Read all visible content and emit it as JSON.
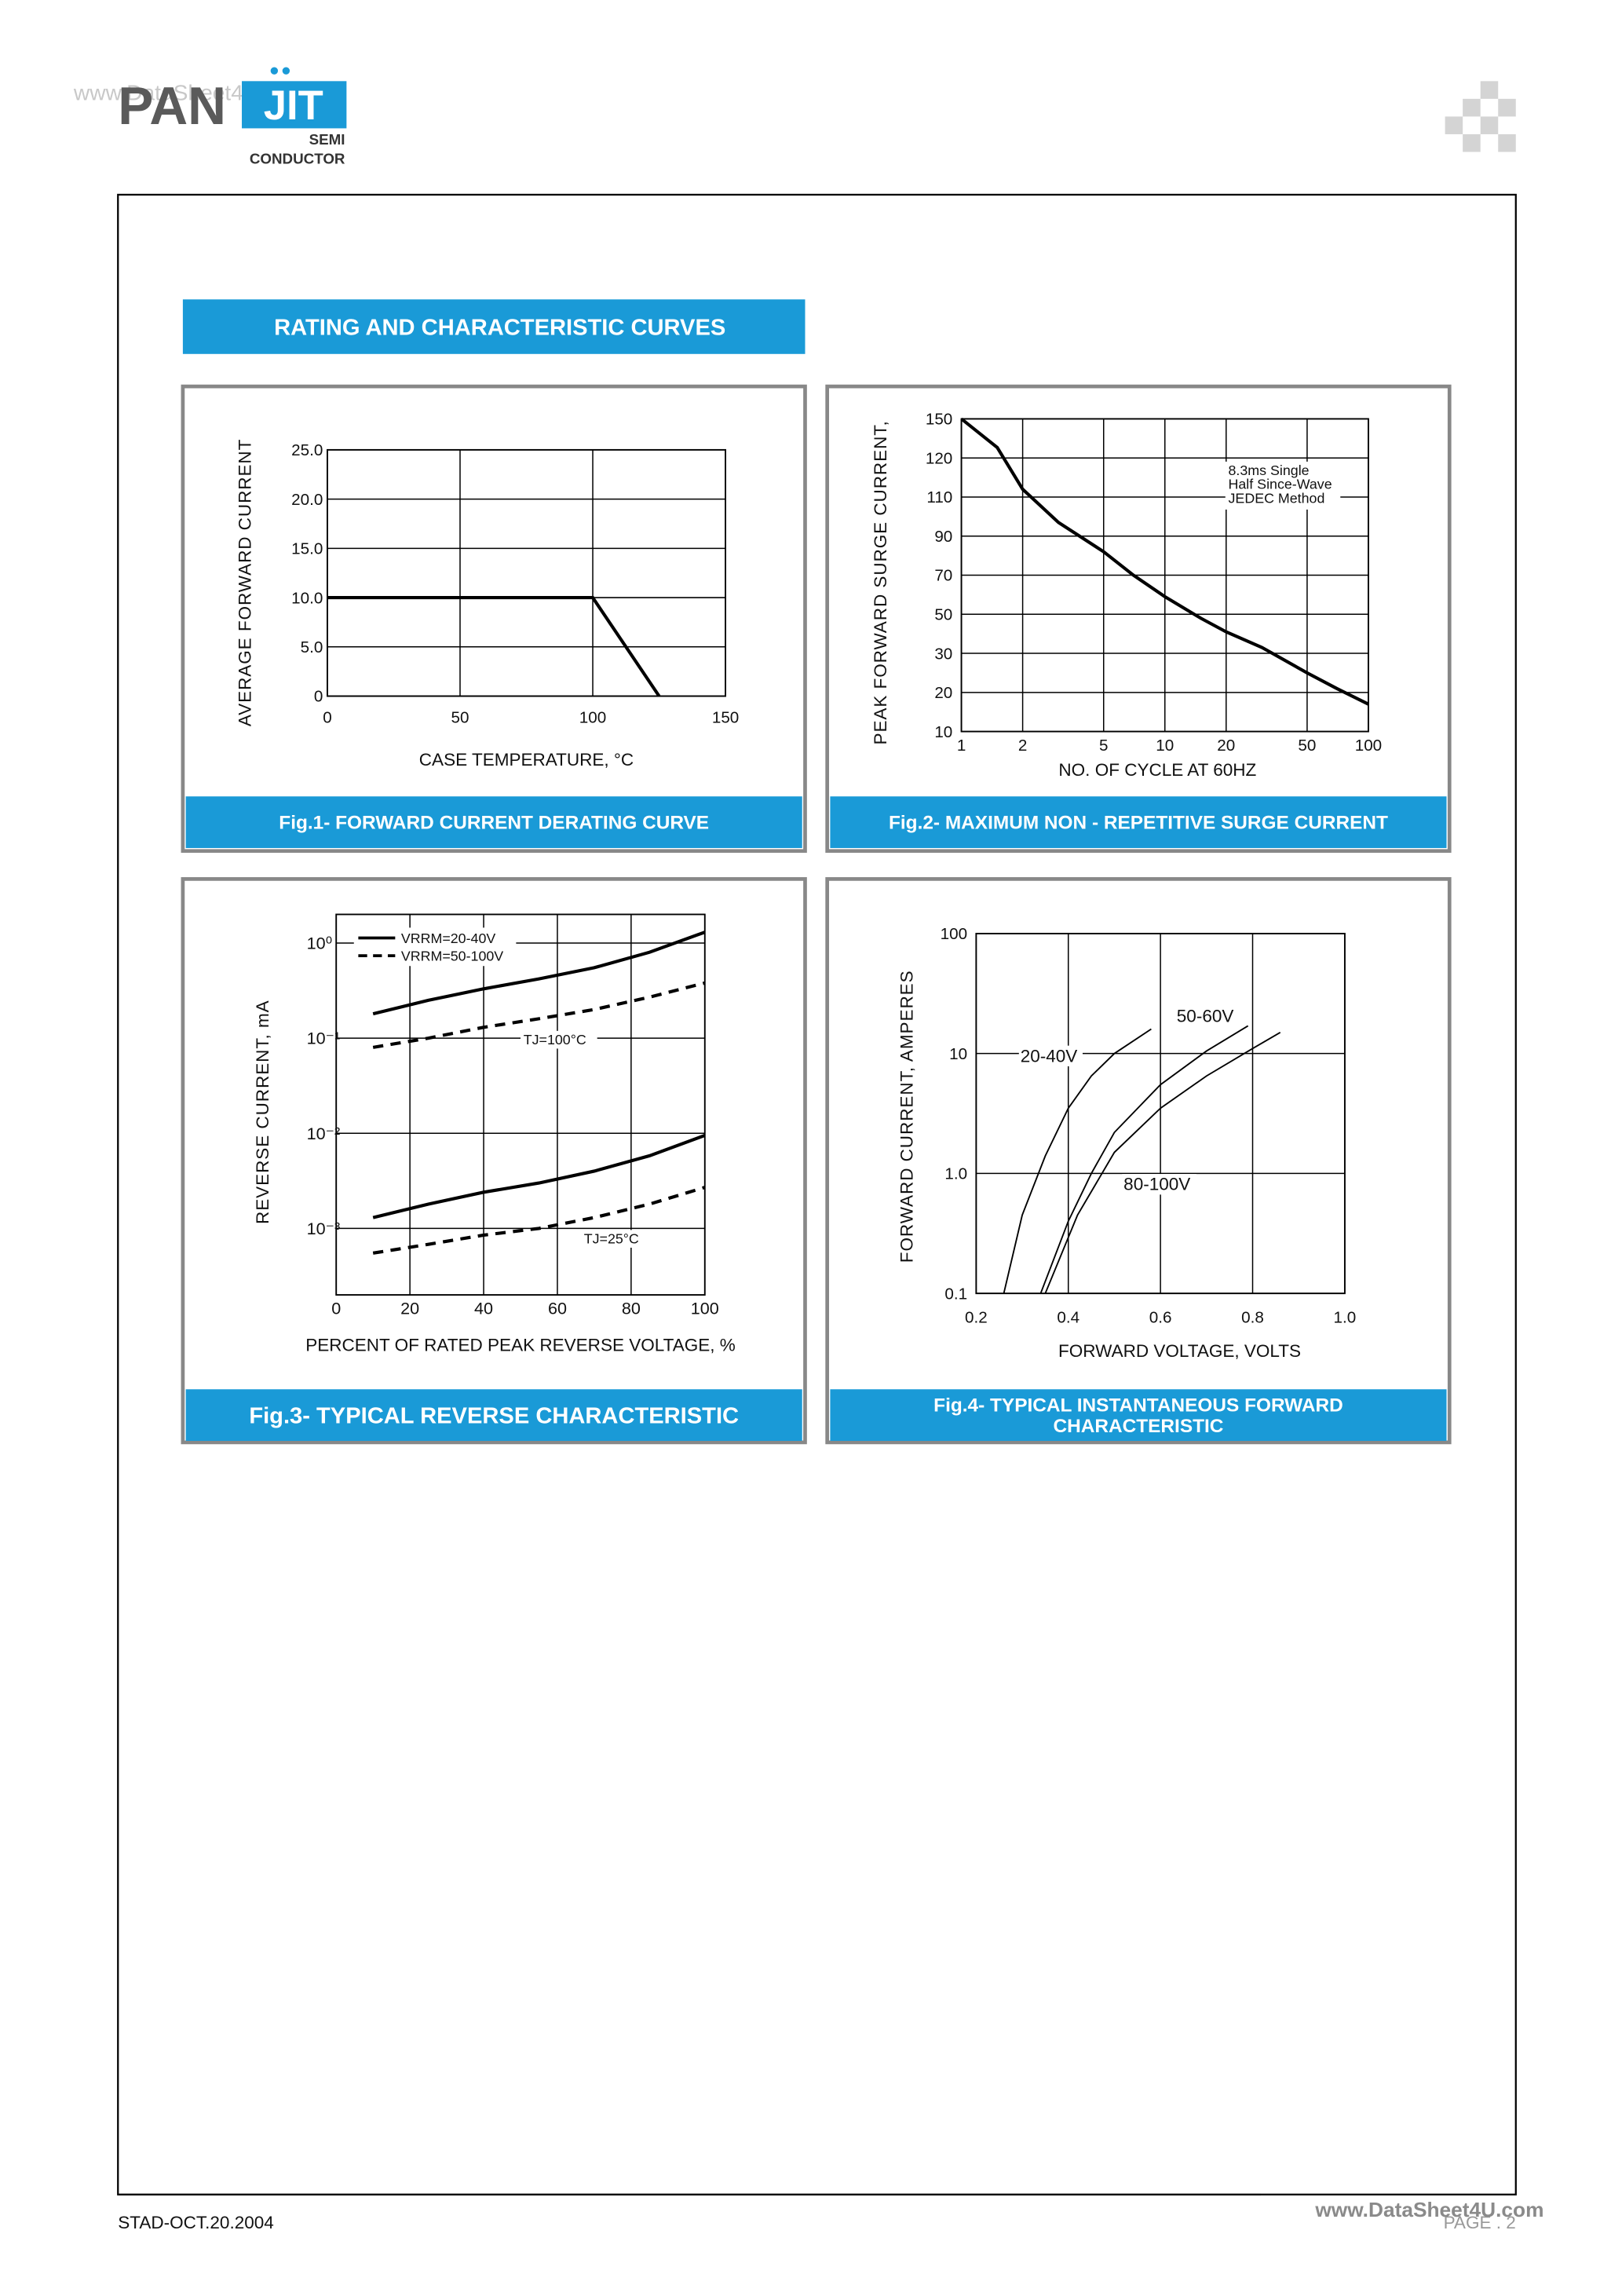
{
  "header": {
    "watermark": "www.DataSheet4U.com",
    "logo": "PAN",
    "logo_highlight": "JIT",
    "company": [
      "SEMI",
      "CONDUCTOR"
    ]
  },
  "section_title": "RATING AND CHARACTERISTIC CURVES",
  "chart_data": [
    {
      "type": "line",
      "caption": [
        "Fig.1- FORWARD CURRENT DERATING CURVE"
      ],
      "xlabel": "CASE TEMPERATURE, °C",
      "ylabel": "AVERAGE FORWARD CURRENT",
      "x": [
        0,
        100,
        125
      ],
      "values": [
        10,
        10,
        0
      ],
      "color": "#000000",
      "xlim": [
        0,
        150
      ],
      "xticks": [
        0,
        50,
        100,
        150
      ],
      "ylim": [
        0,
        25
      ],
      "yticks": [
        0,
        {
          "value": 5,
          "label": "5.0"
        },
        {
          "value": 10,
          "label": "10.0"
        },
        {
          "value": 15,
          "label": "15.0"
        },
        {
          "value": 20,
          "label": "20.0"
        },
        {
          "value": 25,
          "label": "25.0"
        }
      ],
      "grid": true
    },
    {
      "type": "line",
      "caption": [
        "Fig.2- MAXIMUM NON - REPETITIVE SURGE CURRENT"
      ],
      "xlabel": "NO. OF CYCLE AT 60HZ",
      "ylabel": "PEAK FORWARD SURGE CURRENT,",
      "annotation": [
        "8.3ms Single",
        "Half Since-Wave",
        "JEDEC Method"
      ],
      "x": [
        1,
        1.5,
        2,
        3,
        5,
        7,
        10,
        15,
        20,
        30,
        50,
        70,
        100
      ],
      "values": [
        150,
        128,
        112,
        97,
        82,
        70,
        59,
        48,
        41,
        33,
        25,
        21,
        17
      ],
      "color": "#000000",
      "xlim": [
        1,
        100
      ],
      "xscale": "log",
      "xticks": [
        1,
        2,
        5,
        10,
        20,
        50,
        100
      ],
      "ylim": [
        10,
        150
      ],
      "yticks": [
        10,
        20,
        30,
        50,
        70,
        90,
        110,
        120,
        150
      ],
      "grid": true
    },
    {
      "type": "line",
      "caption": [
        "Fig.3- TYPICAL REVERSE CHARACTERISTIC"
      ],
      "xlabel": "PERCENT OF RATED PEAK REVERSE VOLTAGE, %",
      "ylabel": "REVERSE CURRENT, mA",
      "annotation": [
        "TJ=100°C",
        "TJ=25°C"
      ],
      "x": [
        10,
        25,
        40,
        55,
        70,
        85,
        100
      ],
      "series": [
        {
          "name": "VRRM=20-40V",
          "dash": false,
          "color": "#000000",
          "values": [
            [
              0.18,
              0.25,
              0.33,
              0.42,
              0.55,
              0.8,
              1.3
            ],
            [
              0.0013,
              0.0018,
              0.0024,
              0.003,
              0.004,
              0.0058,
              0.0095
            ]
          ]
        },
        {
          "name": "VRRM=50-100V",
          "dash": true,
          "color": "#000000",
          "values": [
            [
              0.08,
              0.1,
              0.13,
              0.16,
              0.2,
              0.27,
              0.38
            ],
            [
              0.00055,
              0.00068,
              0.00085,
              0.001,
              0.0013,
              0.0018,
              0.0027
            ]
          ]
        }
      ],
      "xlim": [
        0,
        100
      ],
      "xticks": [
        0,
        20,
        40,
        60,
        80,
        100
      ],
      "ylim": [
        0.0002,
        2
      ],
      "yscale": "log",
      "yticks": [
        {
          "value": 0.001,
          "label": "10⁻³"
        },
        {
          "value": 0.01,
          "label": "10⁻²"
        },
        {
          "value": 0.1,
          "label": "10⁻¹"
        },
        {
          "value": 1,
          "label": "10⁰"
        }
      ],
      "grid": true
    },
    {
      "type": "line",
      "caption": [
        "Fig.4- TYPICAL INSTANTANEOUS FORWARD",
        "CHARACTERISTIC"
      ],
      "xlabel": "FORWARD VOLTAGE, VOLTS",
      "ylabel": "FORWARD CURRENT, AMPERES",
      "series": [
        {
          "name": "20-40V",
          "color": "#000000",
          "x": [
            0.26,
            0.3,
            0.35,
            0.4,
            0.45,
            0.5,
            0.58
          ],
          "values": [
            0.1,
            0.45,
            1.4,
            3.5,
            6.5,
            10,
            16
          ]
        },
        {
          "name": "50-60V",
          "color": "#000000",
          "x": [
            0.34,
            0.4,
            0.45,
            0.5,
            0.6,
            0.7,
            0.79
          ],
          "values": [
            0.1,
            0.4,
            1,
            2.2,
            5.5,
            10.5,
            17
          ]
        },
        {
          "name": "80-100V",
          "color": "#000000",
          "x": [
            0.35,
            0.42,
            0.5,
            0.6,
            0.7,
            0.8,
            0.86
          ],
          "values": [
            0.1,
            0.45,
            1.5,
            3.5,
            6.5,
            11,
            15
          ]
        }
      ],
      "xlim": [
        0.2,
        1
      ],
      "xticks": [
        0.2,
        0.4,
        0.6,
        0.8,
        {
          "value": 1,
          "label": "1.0"
        }
      ],
      "ylim": [
        0.1,
        100
      ],
      "yscale": "log",
      "yticks": [
        0.1,
        {
          "value": 1,
          "label": "1.0"
        },
        10,
        100
      ],
      "grid": true
    }
  ],
  "footer": {
    "document_code": "STAD-OCT.20.2004",
    "page": "PAGE . 2",
    "watermark": "www.DataSheet4U.com"
  }
}
